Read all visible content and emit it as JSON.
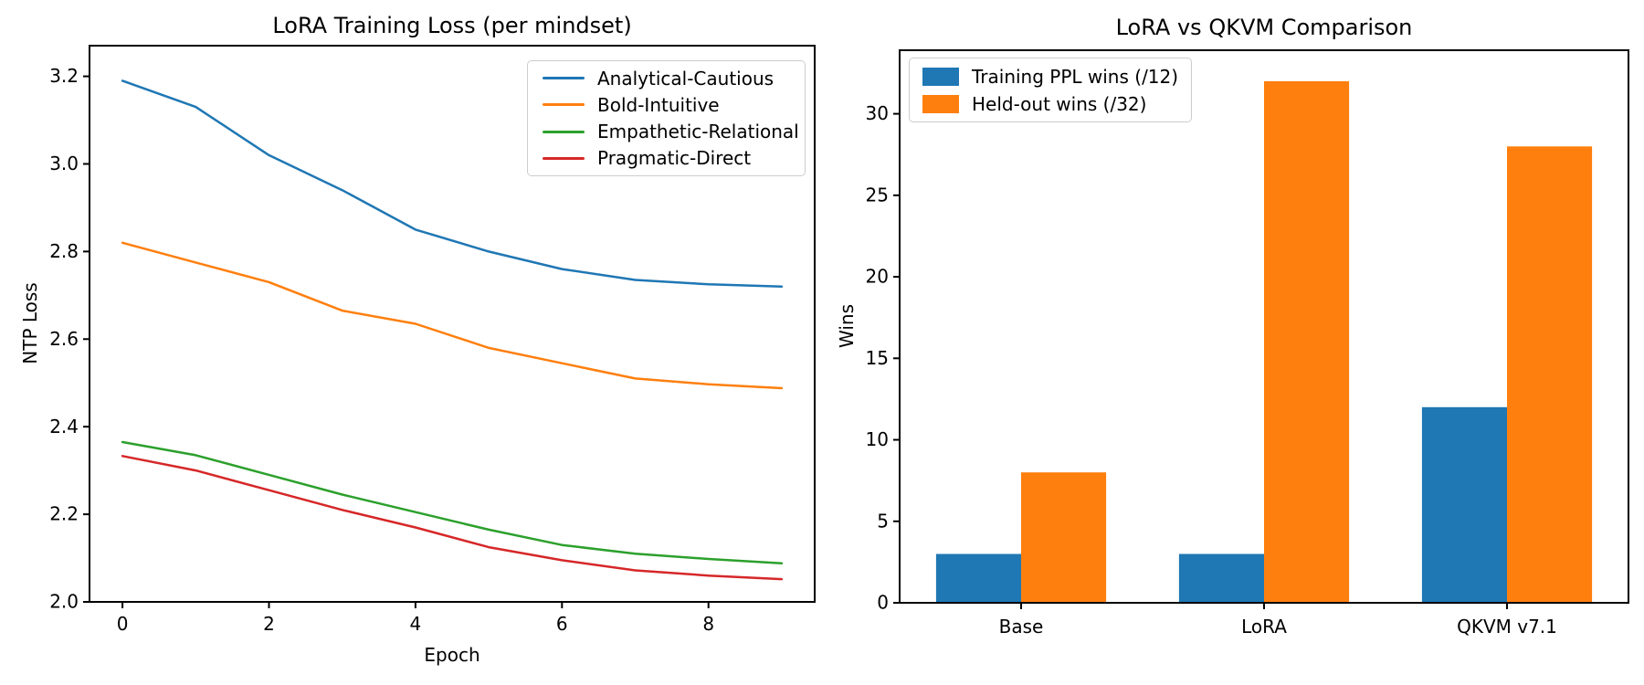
{
  "figure": {
    "background": "#ffffff",
    "text_color": "#000000",
    "spine_color": "#000000"
  },
  "chart_data": [
    {
      "type": "line",
      "title": "LoRA Training Loss (per mindset)",
      "xlabel": "Epoch",
      "ylabel": "NTP Loss",
      "x": [
        0,
        1,
        2,
        3,
        4,
        5,
        6,
        7,
        8,
        9
      ],
      "series": [
        {
          "name": "Analytical-Cautious",
          "color": "#1f77b4",
          "values": [
            3.19,
            3.13,
            3.02,
            2.94,
            2.85,
            2.8,
            2.76,
            2.735,
            2.725,
            2.72
          ]
        },
        {
          "name": "Bold-Intuitive",
          "color": "#ff7f0e",
          "values": [
            2.82,
            2.775,
            2.73,
            2.665,
            2.635,
            2.58,
            2.545,
            2.51,
            2.497,
            2.488
          ]
        },
        {
          "name": "Empathetic-Relational",
          "color": "#2ca02c",
          "values": [
            2.365,
            2.335,
            2.29,
            2.245,
            2.205,
            2.165,
            2.13,
            2.11,
            2.098,
            2.088
          ]
        },
        {
          "name": "Pragmatic-Direct",
          "color": "#d62728",
          "values": [
            2.333,
            2.3,
            2.255,
            2.21,
            2.17,
            2.125,
            2.095,
            2.072,
            2.06,
            2.052
          ]
        }
      ],
      "xlim": [
        -0.45,
        9.45
      ],
      "ylim": [
        2.0,
        3.27
      ],
      "xtick_labels": [
        "0",
        "2",
        "4",
        "6",
        "8"
      ],
      "ytick_labels": [
        "2.0",
        "2.2",
        "2.4",
        "2.6",
        "2.8",
        "3.0",
        "3.2"
      ],
      "legend_position": "upper right",
      "grid": false
    },
    {
      "type": "bar",
      "title": "LoRA vs QKVM Comparison",
      "xlabel": "",
      "ylabel": "Wins",
      "categories": [
        "Base",
        "LoRA",
        "QKVM v7.1"
      ],
      "series": [
        {
          "name": "Training PPL wins (/12)",
          "color": "#1f77b4",
          "values": [
            3,
            3,
            12
          ]
        },
        {
          "name": "Held-out wins (/32)",
          "color": "#ff7f0e",
          "values": [
            8,
            32,
            28
          ]
        }
      ],
      "ylim": [
        0,
        33.9
      ],
      "ytick_labels": [
        "0",
        "5",
        "10",
        "15",
        "20",
        "25",
        "30"
      ],
      "bar_width_fraction": 0.35,
      "legend_position": "upper left",
      "grid": false
    }
  ]
}
